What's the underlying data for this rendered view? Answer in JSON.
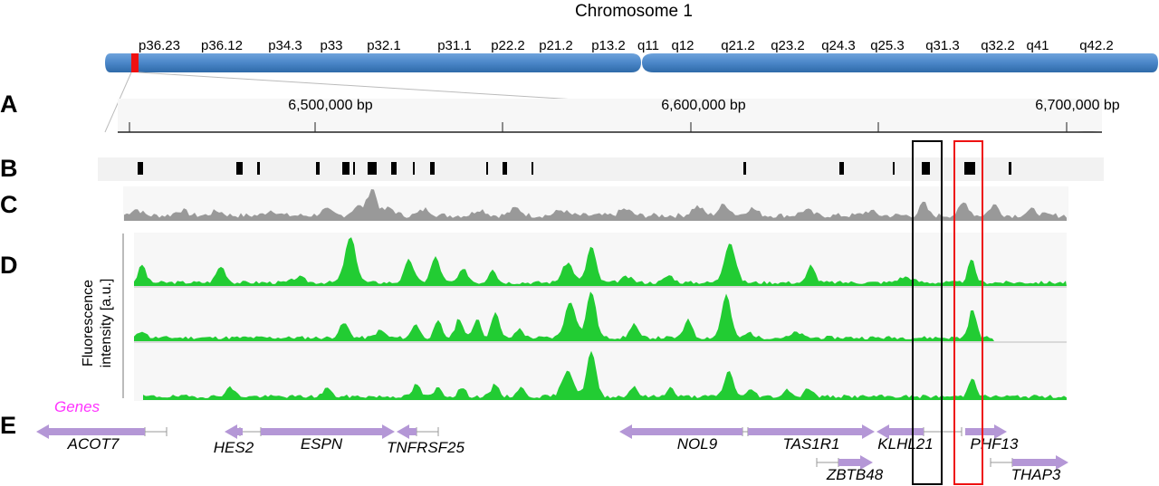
{
  "chromosome": {
    "title": "Chromosome 1",
    "bands": [
      "p36.23",
      "p36.12",
      "p34.3",
      "p33",
      "p32.1",
      "p31.1",
      "p22.2",
      "p21.2",
      "p13.2",
      "q11",
      "q12",
      "q21.2",
      "q23.2",
      "q24.3",
      "q25.3",
      "q31.3",
      "q32.2",
      "q41",
      "q42.2"
    ],
    "bar_color": "#4a86c8",
    "highlight_color": "#ee1111"
  },
  "panels": {
    "A": "A",
    "B": "B",
    "C": "C",
    "D": "D",
    "E": "E"
  },
  "axis": {
    "ticks": [
      "6,500,000 bp",
      "6,600,000 bp",
      "6,700,000 bp"
    ]
  },
  "fluorescence": {
    "ylabel_line1": "Fluorescence",
    "ylabel_line2": "intensity [a.u.]",
    "color": "#22cc33",
    "track_count": 3
  },
  "conservation": {
    "color": "#999999"
  },
  "genes": {
    "title": "Genes",
    "color": "#b497d6",
    "items": [
      "ACOT7",
      "HES2",
      "ESPN",
      "TNFRSF25",
      "NOL9",
      "TAS1R1",
      "KLHL21",
      "PHF13",
      "ZBTB48",
      "THAP3"
    ]
  },
  "highlights": {
    "black_box_color": "#000000",
    "red_box_color": "#ee1111"
  }
}
